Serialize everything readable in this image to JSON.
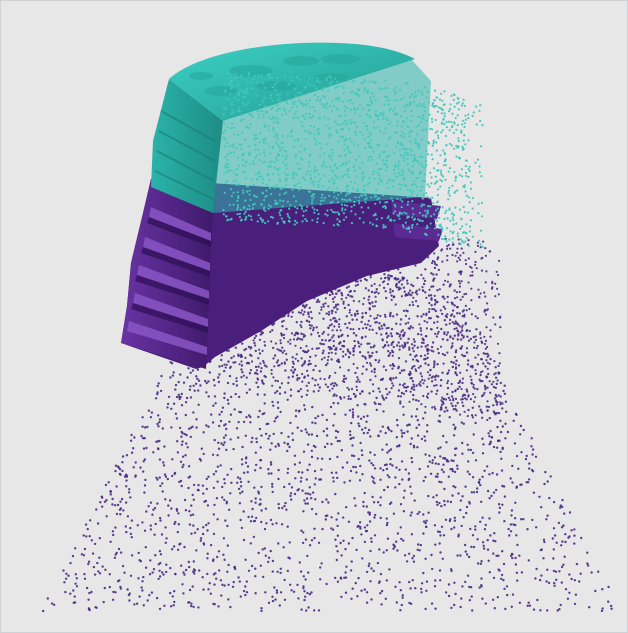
{
  "scene": {
    "background_color": "#e6e7e6",
    "colors": {
      "teal": "#35c2b8",
      "teal_dark": "#1f8f88",
      "teal_light": "#5ad6cb",
      "purple": "#5a2b8f",
      "purple_dark": "#3f1a6b",
      "purple_light": "#7a45b5",
      "particle_purple": "#4b2a84",
      "particle_teal": "#43c7bd"
    }
  }
}
